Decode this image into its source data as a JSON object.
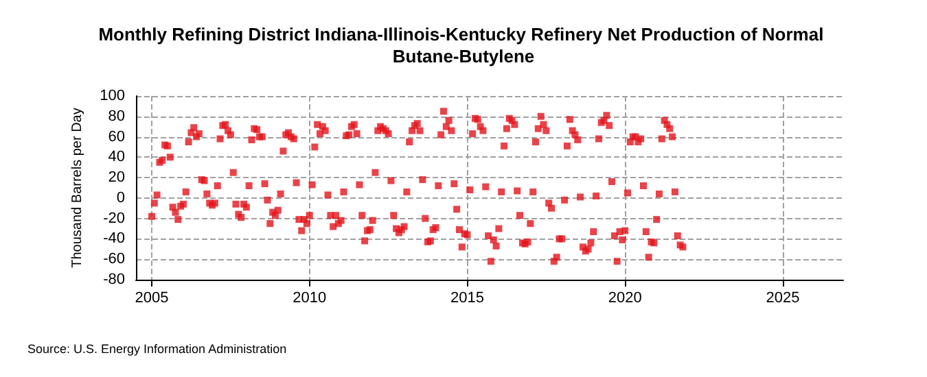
{
  "chart_data": {
    "type": "scatter",
    "title": "Monthly Refining District Indiana-Illinois-Kentucky Refinery Net Production of Normal Butane-Butylene",
    "ylabel": "Thousand Barrels per Day",
    "annotations": [
      "Source: U.S. Energy Information Administration"
    ],
    "x": [
      "2005-01",
      "2005-02",
      "2005-03",
      "2005-04",
      "2005-05",
      "2005-06",
      "2005-07",
      "2005-08",
      "2005-09",
      "2005-10",
      "2005-11",
      "2005-12",
      "2006-01",
      "2006-02",
      "2006-03",
      "2006-04",
      "2006-05",
      "2006-06",
      "2006-07",
      "2006-08",
      "2006-09",
      "2006-10",
      "2006-11",
      "2006-12",
      "2007-01",
      "2007-02",
      "2007-03",
      "2007-04",
      "2007-05",
      "2007-06",
      "2007-07",
      "2007-08",
      "2007-09",
      "2007-10",
      "2007-11",
      "2007-12",
      "2008-01",
      "2008-02",
      "2008-03",
      "2008-04",
      "2008-05",
      "2008-06",
      "2008-07",
      "2008-08",
      "2008-09",
      "2008-10",
      "2008-11",
      "2008-12",
      "2009-01",
      "2009-02",
      "2009-03",
      "2009-04",
      "2009-05",
      "2009-06",
      "2009-07",
      "2009-08",
      "2009-09",
      "2009-10",
      "2009-11",
      "2009-12",
      "2010-01",
      "2010-02",
      "2010-03",
      "2010-04",
      "2010-05",
      "2010-06",
      "2010-07",
      "2010-08",
      "2010-09",
      "2010-10",
      "2010-11",
      "2010-12",
      "2011-01",
      "2011-02",
      "2011-03",
      "2011-04",
      "2011-05",
      "2011-06",
      "2011-07",
      "2011-08",
      "2011-09",
      "2011-10",
      "2011-11",
      "2011-12",
      "2012-01",
      "2012-02",
      "2012-03",
      "2012-04",
      "2012-05",
      "2012-06",
      "2012-07",
      "2012-08",
      "2012-09",
      "2012-10",
      "2012-11",
      "2012-12",
      "2013-01",
      "2013-02",
      "2013-03",
      "2013-04",
      "2013-05",
      "2013-06",
      "2013-07",
      "2013-08",
      "2013-09",
      "2013-10",
      "2013-11",
      "2013-12",
      "2014-01",
      "2014-02",
      "2014-03",
      "2014-04",
      "2014-05",
      "2014-06",
      "2014-07",
      "2014-08",
      "2014-09",
      "2014-10",
      "2014-11",
      "2014-12",
      "2015-01",
      "2015-02",
      "2015-03",
      "2015-04",
      "2015-05",
      "2015-06",
      "2015-07",
      "2015-08",
      "2015-09",
      "2015-10",
      "2015-11",
      "2015-12",
      "2016-01",
      "2016-02",
      "2016-03",
      "2016-04",
      "2016-05",
      "2016-06",
      "2016-07",
      "2016-08",
      "2016-09",
      "2016-10",
      "2016-11",
      "2016-12",
      "2017-01",
      "2017-02",
      "2017-03",
      "2017-04",
      "2017-05",
      "2017-06",
      "2017-07",
      "2017-08",
      "2017-09",
      "2017-10",
      "2017-11",
      "2017-12",
      "2018-01",
      "2018-02",
      "2018-03",
      "2018-04",
      "2018-05",
      "2018-06",
      "2018-07",
      "2018-08",
      "2018-09",
      "2018-10",
      "2018-11",
      "2018-12",
      "2019-01",
      "2019-02",
      "2019-03",
      "2019-04",
      "2019-05",
      "2019-06",
      "2019-07",
      "2019-08",
      "2019-09",
      "2019-10",
      "2019-11",
      "2019-12",
      "2020-01",
      "2020-02",
      "2020-03",
      "2020-04",
      "2020-05",
      "2020-06",
      "2020-07",
      "2020-08",
      "2020-09",
      "2020-10",
      "2020-11",
      "2020-12",
      "2021-01",
      "2021-02",
      "2021-03",
      "2021-04",
      "2021-05",
      "2021-06",
      "2021-07",
      "2021-08",
      "2021-09",
      "2021-10",
      "2021-11"
    ],
    "series": [
      {
        "color": "#e3141b",
        "values": [
          -18,
          -5,
          3,
          35,
          37,
          52,
          51,
          40,
          -9,
          -14,
          -21,
          -8,
          -6,
          6,
          55,
          64,
          69,
          60,
          63,
          18,
          17,
          4,
          -5,
          -7,
          -5,
          12,
          58,
          71,
          72,
          66,
          62,
          25,
          -6,
          -16,
          -19,
          -6,
          -9,
          12,
          57,
          68,
          67,
          60,
          60,
          14,
          -2,
          -25,
          -14,
          -17,
          -12,
          4,
          46,
          62,
          64,
          60,
          58,
          15,
          -21,
          -32,
          -21,
          -25,
          -17,
          13,
          50,
          72,
          63,
          70,
          66,
          3,
          -17,
          -28,
          -17,
          -25,
          -22,
          6,
          61,
          62,
          70,
          72,
          63,
          13,
          -17,
          -42,
          -32,
          -31,
          -22,
          25,
          66,
          70,
          68,
          66,
          63,
          17,
          -17,
          -30,
          -34,
          -31,
          -28,
          6,
          55,
          66,
          71,
          73,
          66,
          18,
          -20,
          -43,
          -42,
          -31,
          -29,
          12,
          62,
          85,
          70,
          76,
          66,
          14,
          -11,
          -31,
          -48,
          -35,
          -36,
          8,
          63,
          78,
          77,
          70,
          66,
          11,
          -37,
          -62,
          -41,
          -47,
          -30,
          6,
          51,
          68,
          78,
          76,
          72,
          7,
          -17,
          -44,
          -45,
          -43,
          -25,
          6,
          55,
          68,
          80,
          72,
          66,
          -5,
          -10,
          -62,
          -58,
          -40,
          -40,
          -2,
          51,
          77,
          66,
          62,
          57,
          1,
          -48,
          -52,
          -50,
          -44,
          -33,
          2,
          58,
          74,
          76,
          81,
          71,
          16,
          -37,
          -62,
          -33,
          -41,
          -32,
          5,
          55,
          60,
          60,
          55,
          58,
          12,
          -33,
          -58,
          -43,
          -44,
          -21,
          4,
          58,
          76,
          72,
          68,
          60,
          6,
          -37,
          -46,
          -48
        ]
      }
    ],
    "xlim": [
      "2004-07",
      "2026-12"
    ],
    "xticks": [
      "2005",
      "2010",
      "2015",
      "2020",
      "2025"
    ],
    "ylim": [
      -80,
      100
    ],
    "yticks": [
      -80,
      -60,
      -40,
      -20,
      0,
      20,
      40,
      60,
      80,
      100
    ],
    "grid": true,
    "marker": "square"
  }
}
